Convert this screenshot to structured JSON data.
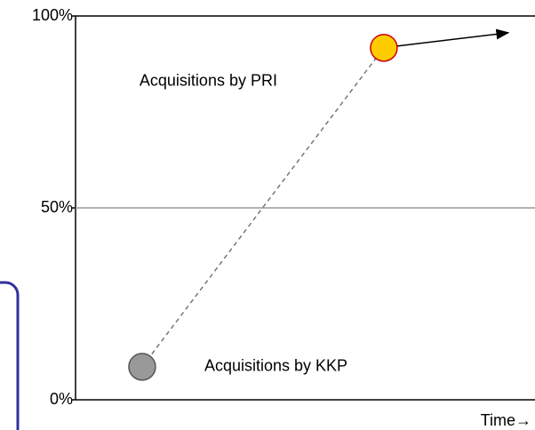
{
  "chart_data": {
    "type": "scatter",
    "x_label": "Time→",
    "xlim": [
      0,
      100
    ],
    "ylim": [
      0,
      100
    ],
    "yticks": [
      {
        "value": 0,
        "label": "0%"
      },
      {
        "value": 50,
        "label": "50%"
      },
      {
        "value": 100,
        "label": "100%"
      }
    ],
    "x": [
      14.5,
      67.1
    ],
    "values": [
      8.6,
      91.7
    ],
    "colors": [
      "#999999",
      "#ffcc00"
    ],
    "edge_colors": [
      "#555555",
      "#cc0000"
    ],
    "annotations": [
      "Acquisitions by KKP",
      "Acquisitions by PRI"
    ],
    "grid": true
  }
}
